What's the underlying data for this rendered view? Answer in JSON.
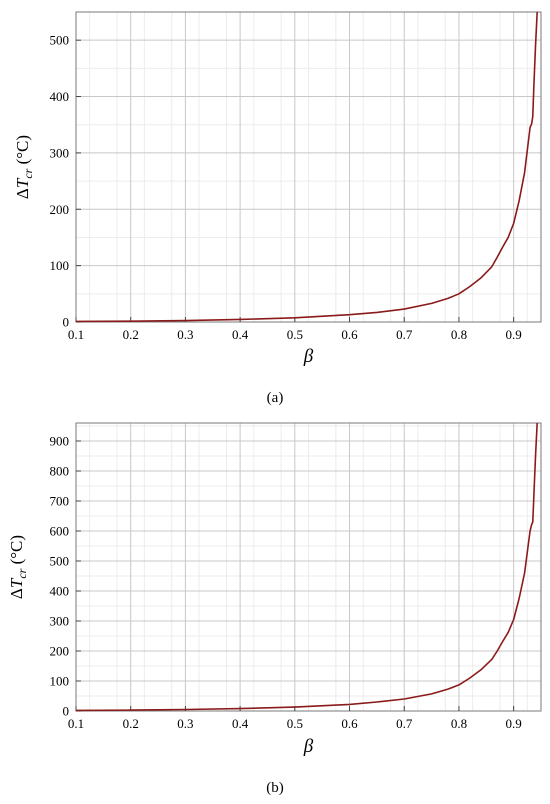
{
  "chart_data": [
    {
      "type": "line",
      "panel": "a",
      "caption": "(a)",
      "xlabel": "β",
      "ylabel": {
        "delta": "Δ",
        "symbol": "T",
        "subscript": "cr",
        "unit": " (°C)"
      },
      "xlim": [
        0.1,
        0.95
      ],
      "ylim": [
        0,
        550
      ],
      "xticks": [
        0.1,
        0.2,
        0.3,
        0.4,
        0.5,
        0.6,
        0.7,
        0.8,
        0.9
      ],
      "xtick_labels": [
        "0.1",
        "0.2",
        "0.3",
        "0.4",
        "0.5",
        "0.6",
        "0.7",
        "0.8",
        "0.9"
      ],
      "yticks": [
        0,
        100,
        200,
        300,
        400,
        500
      ],
      "ytick_labels": [
        "0",
        "100",
        "200",
        "300",
        "400",
        "500"
      ],
      "grid": true,
      "line_color": "#8b1a1a",
      "series": [
        {
          "x": [
            0.1,
            0.2,
            0.3,
            0.4,
            0.5,
            0.6,
            0.65,
            0.7,
            0.75,
            0.78,
            0.8,
            0.82,
            0.84,
            0.86,
            0.87,
            0.88,
            0.89,
            0.9,
            0.91,
            0.92,
            0.925,
            0.93,
            0.933,
            0.935,
            0.937,
            0.94,
            0.943
          ],
          "y": [
            1,
            1.5,
            2.5,
            4.5,
            7.5,
            13,
            17,
            23,
            33,
            42,
            50,
            63,
            78,
            98,
            115,
            133,
            150,
            175,
            215,
            265,
            305,
            345,
            352,
            365,
            420,
            490,
            550
          ]
        }
      ]
    },
    {
      "type": "line",
      "panel": "b",
      "caption": "(b)",
      "xlabel": "β",
      "ylabel": {
        "delta": "Δ",
        "symbol": "T",
        "subscript": "cr",
        "unit": " (°C)"
      },
      "xlim": [
        0.1,
        0.95
      ],
      "ylim": [
        0,
        960
      ],
      "xticks": [
        0.1,
        0.2,
        0.3,
        0.4,
        0.5,
        0.6,
        0.7,
        0.8,
        0.9
      ],
      "xtick_labels": [
        "0.1",
        "0.2",
        "0.3",
        "0.4",
        "0.5",
        "0.6",
        "0.7",
        "0.8",
        "0.9"
      ],
      "yticks": [
        0,
        100,
        200,
        300,
        400,
        500,
        600,
        700,
        800,
        900
      ],
      "ytick_labels": [
        "0",
        "100",
        "200",
        "300",
        "400",
        "500",
        "600",
        "700",
        "800",
        "900"
      ],
      "grid": true,
      "line_color": "#8b1a1a",
      "series": [
        {
          "x": [
            0.1,
            0.2,
            0.3,
            0.4,
            0.5,
            0.6,
            0.65,
            0.7,
            0.75,
            0.78,
            0.8,
            0.82,
            0.84,
            0.86,
            0.87,
            0.88,
            0.89,
            0.9,
            0.91,
            0.92,
            0.925,
            0.93,
            0.933,
            0.935,
            0.937,
            0.94,
            0.943
          ],
          "y": [
            2,
            3,
            5,
            8,
            13,
            22,
            30,
            40,
            57,
            73,
            87,
            110,
            137,
            172,
            200,
            232,
            262,
            305,
            375,
            460,
            530,
            600,
            622,
            630,
            720,
            850,
            960
          ]
        }
      ]
    }
  ]
}
